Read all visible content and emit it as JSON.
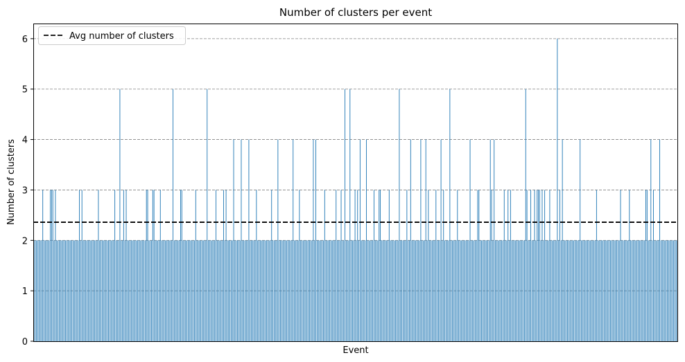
{
  "chart_data": {
    "type": "bar",
    "title": "Number of clusters per event",
    "xlabel": "Event",
    "ylabel": "Number of clusters",
    "ylim": [
      0,
      6.3
    ],
    "yticks": [
      0,
      1,
      2,
      3,
      4,
      5,
      6
    ],
    "grid": "horizontal dashed",
    "bar_color": "#1f77b4",
    "average": {
      "label": "Avg number of clusters",
      "value": 2.36,
      "color": "#000000",
      "style": "dashed"
    },
    "legend_position": "top-left",
    "series": [
      {
        "values": [
          2,
          2,
          2,
          2,
          2,
          2,
          2,
          3,
          2,
          2,
          2,
          2,
          2,
          3,
          3,
          3,
          2,
          3,
          2,
          2,
          2,
          2,
          2,
          2,
          2,
          2,
          2,
          2,
          2,
          2,
          2,
          2,
          2,
          2,
          2,
          2,
          3,
          2,
          3,
          2,
          2,
          2,
          2,
          2,
          2,
          2,
          2,
          2,
          2,
          2,
          2,
          3,
          2,
          2,
          2,
          2,
          2,
          2,
          2,
          2,
          2,
          2,
          2,
          2,
          3,
          2,
          2,
          2,
          5,
          2,
          2,
          3,
          2,
          3,
          2,
          2,
          2,
          2,
          2,
          2,
          2,
          2,
          2,
          2,
          2,
          2,
          2,
          2,
          2,
          3,
          3,
          2,
          2,
          2,
          3,
          3,
          2,
          2,
          2,
          2,
          3,
          2,
          2,
          2,
          2,
          2,
          2,
          2,
          2,
          2,
          5,
          2,
          2,
          2,
          2,
          2,
          3,
          3,
          2,
          2,
          2,
          2,
          2,
          2,
          2,
          2,
          2,
          2,
          3,
          2,
          2,
          2,
          2,
          2,
          2,
          2,
          2,
          5,
          2,
          2,
          2,
          2,
          2,
          2,
          3,
          2,
          2,
          2,
          2,
          2,
          3,
          2,
          3,
          2,
          2,
          2,
          2,
          2,
          4,
          2,
          2,
          2,
          2,
          2,
          4,
          2,
          2,
          2,
          2,
          2,
          4,
          2,
          2,
          2,
          2,
          2,
          3,
          2,
          2,
          2,
          2,
          2,
          2,
          2,
          2,
          2,
          2,
          2,
          3,
          2,
          2,
          2,
          2,
          4,
          2,
          2,
          2,
          2,
          2,
          2,
          2,
          2,
          2,
          2,
          2,
          4,
          2,
          2,
          2,
          2,
          3,
          2,
          2,
          2,
          2,
          2,
          2,
          2,
          2,
          2,
          2,
          4,
          2,
          4,
          2,
          2,
          2,
          2,
          2,
          2,
          3,
          2,
          2,
          2,
          2,
          2,
          2,
          2,
          2,
          3,
          2,
          2,
          2,
          3,
          2,
          2,
          5,
          2,
          2,
          2,
          5,
          2,
          2,
          2,
          3,
          2,
          3,
          2,
          4,
          2,
          2,
          2,
          2,
          4,
          2,
          2,
          2,
          2,
          2,
          3,
          2,
          2,
          2,
          3,
          3,
          2,
          2,
          2,
          2,
          2,
          2,
          3,
          2,
          2,
          2,
          2,
          2,
          2,
          2,
          5,
          2,
          2,
          2,
          2,
          2,
          3,
          2,
          2,
          4,
          2,
          2,
          2,
          2,
          2,
          2,
          2,
          4,
          2,
          2,
          2,
          4,
          2,
          3,
          2,
          2,
          2,
          2,
          2,
          3,
          2,
          2,
          2,
          4,
          2,
          3,
          2,
          2,
          2,
          2,
          5,
          2,
          2,
          2,
          2,
          2,
          3,
          2,
          2,
          2,
          2,
          2,
          2,
          2,
          2,
          2,
          4,
          2,
          2,
          2,
          2,
          2,
          3,
          3,
          2,
          2,
          2,
          2,
          2,
          2,
          2,
          2,
          4,
          3,
          2,
          4,
          2,
          2,
          2,
          2,
          2,
          2,
          2,
          3,
          2,
          2,
          3,
          2,
          3,
          2,
          2,
          2,
          2,
          2,
          2,
          2,
          2,
          2,
          2,
          2,
          5,
          3,
          2,
          2,
          3,
          2,
          2,
          3,
          2,
          3,
          3,
          3,
          2,
          3,
          2,
          3,
          2,
          2,
          2,
          3,
          2,
          2,
          2,
          2,
          2,
          6,
          2,
          3,
          2,
          4,
          2,
          2,
          2,
          2,
          2,
          2,
          2,
          2,
          2,
          2,
          2,
          2,
          2,
          4,
          2,
          2,
          2,
          2,
          2,
          2,
          2,
          2,
          2,
          2,
          2,
          2,
          3,
          2,
          2,
          2,
          2,
          2,
          2,
          2,
          2,
          2,
          2,
          2,
          2,
          2,
          2,
          2,
          2,
          2,
          2,
          3,
          2,
          2,
          2,
          2,
          2,
          2,
          3,
          2,
          2,
          2,
          2,
          2,
          2,
          2,
          2,
          2,
          2,
          2,
          2,
          3,
          3,
          2,
          2,
          4,
          2,
          3,
          2,
          2,
          2,
          2,
          4,
          2,
          2,
          2,
          2,
          2,
          2,
          2,
          2,
          2,
          2,
          2,
          2,
          2,
          2
        ]
      }
    ]
  }
}
